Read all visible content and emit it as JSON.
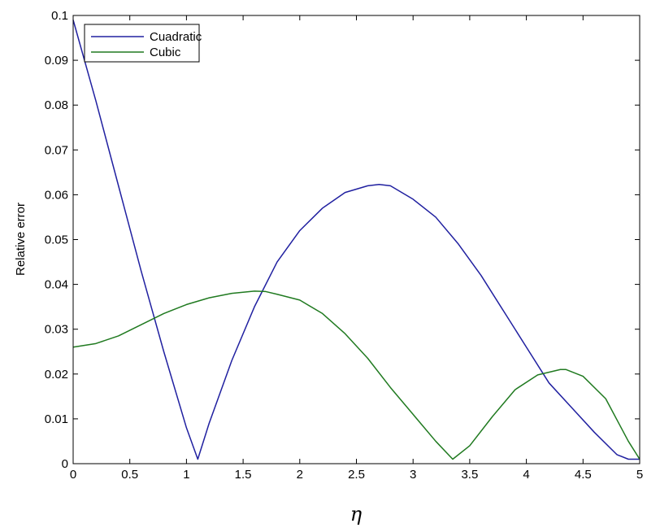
{
  "chart_data": {
    "type": "line",
    "title": "",
    "xlabel": "η",
    "ylabel": "Relative error",
    "xlim": [
      0,
      5
    ],
    "ylim": [
      0,
      0.1
    ],
    "xticks": [
      0,
      0.5,
      1,
      1.5,
      2,
      2.5,
      3,
      3.5,
      4,
      4.5,
      5
    ],
    "xtick_labels": [
      "0",
      "0.5",
      "1",
      "1.5",
      "2",
      "2.5",
      "3",
      "3.5",
      "4",
      "4.5",
      "5"
    ],
    "yticks": [
      0,
      0.01,
      0.02,
      0.03,
      0.04,
      0.05,
      0.06,
      0.07,
      0.08,
      0.09,
      0.1
    ],
    "ytick_labels": [
      "0",
      "0.01",
      "0.02",
      "0.03",
      "0.04",
      "0.05",
      "0.06",
      "0.07",
      "0.08",
      "0.09",
      "0.1"
    ],
    "grid": false,
    "legend_position": "top-left",
    "series": [
      {
        "name": "Cuadratic",
        "color": "#2020a0",
        "x": [
          0,
          0.2,
          0.4,
          0.6,
          0.8,
          1.0,
          1.1,
          1.2,
          1.4,
          1.6,
          1.8,
          2.0,
          2.2,
          2.4,
          2.6,
          2.7,
          2.8,
          3.0,
          3.2,
          3.4,
          3.6,
          3.8,
          4.0,
          4.2,
          4.4,
          4.6,
          4.8,
          4.9,
          5.0
        ],
        "y": [
          0.099,
          0.081,
          0.062,
          0.043,
          0.025,
          0.008,
          0.001,
          0.009,
          0.023,
          0.035,
          0.045,
          0.052,
          0.057,
          0.0605,
          0.062,
          0.0623,
          0.062,
          0.059,
          0.055,
          0.049,
          0.042,
          0.034,
          0.026,
          0.018,
          0.0125,
          0.007,
          0.002,
          0.001,
          0.001
        ]
      },
      {
        "name": "Cubic",
        "color": "#207a20",
        "x": [
          0,
          0.2,
          0.4,
          0.6,
          0.8,
          1.0,
          1.2,
          1.4,
          1.6,
          1.7,
          1.8,
          2.0,
          2.2,
          2.4,
          2.6,
          2.8,
          3.0,
          3.2,
          3.35,
          3.5,
          3.7,
          3.9,
          4.1,
          4.3,
          4.35,
          4.5,
          4.7,
          4.9,
          5.0
        ],
        "y": [
          0.026,
          0.0268,
          0.0285,
          0.031,
          0.0335,
          0.0355,
          0.037,
          0.038,
          0.0385,
          0.0384,
          0.0378,
          0.0365,
          0.0335,
          0.029,
          0.0235,
          0.017,
          0.011,
          0.005,
          0.001,
          0.004,
          0.0105,
          0.0165,
          0.0198,
          0.021,
          0.021,
          0.0195,
          0.0145,
          0.005,
          0.001
        ]
      }
    ]
  }
}
